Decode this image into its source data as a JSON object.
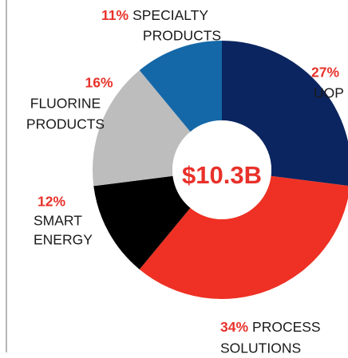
{
  "chart_data": {
    "type": "donut",
    "center_label": "$10.3B",
    "categories": [
      [
        "UOP"
      ],
      [
        "PROCESS",
        "SOLUTIONS"
      ],
      [
        "SMART",
        "ENERGY"
      ],
      [
        "FLUORINE",
        "PRODUCTS"
      ],
      [
        "SPECIALTY",
        "PRODUCTS"
      ]
    ],
    "values": [
      27,
      34,
      12,
      16,
      11
    ],
    "value_labels": [
      "27%",
      "34%",
      "12%",
      "16%",
      "11%"
    ],
    "colors": [
      "#0b2560",
      "#ee3124",
      "#000000",
      "#bdbdbd",
      "#1568a8"
    ]
  }
}
